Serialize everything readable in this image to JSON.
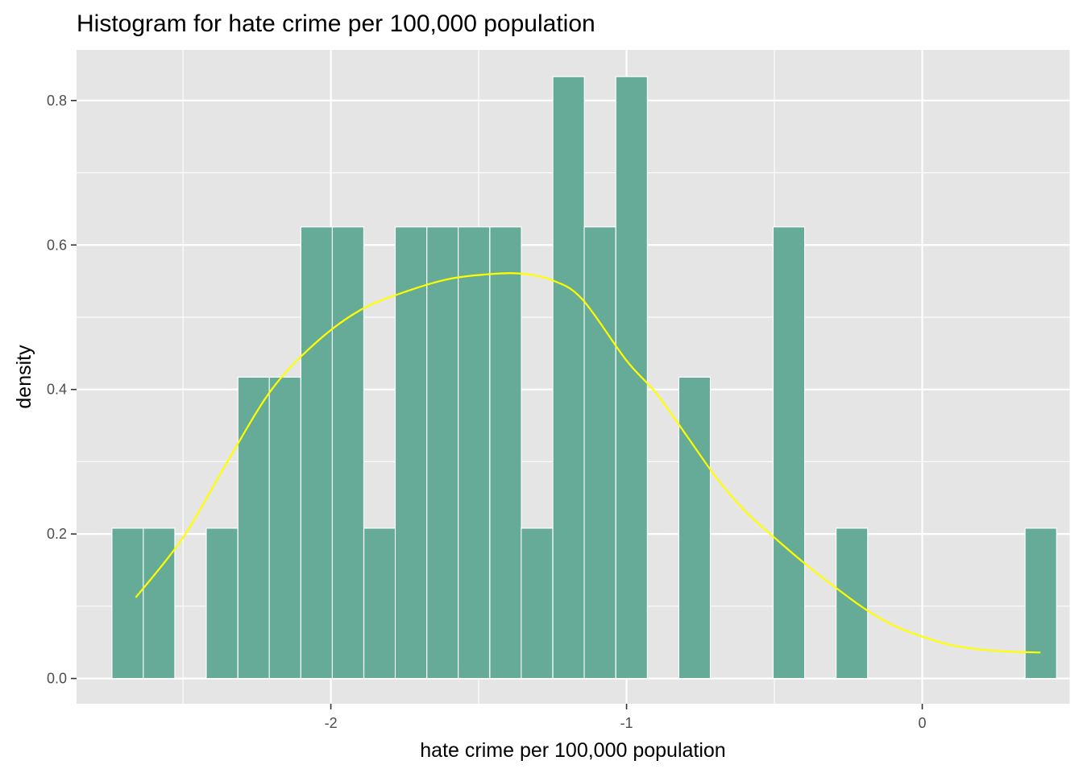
{
  "chart_data": {
    "type": "bar",
    "subtype": "histogram-with-density",
    "title": "Histogram for hate crime per 100,000 population",
    "xlabel": "hate crime per 100,000 population",
    "ylabel": "density",
    "xlim": [
      -2.86,
      0.5
    ],
    "ylim": [
      -0.035,
      0.87
    ],
    "x_ticks": [
      -2,
      -1,
      0
    ],
    "x_tick_labels": [
      "-2",
      "-1",
      "0"
    ],
    "y_ticks": [
      0.0,
      0.2,
      0.4,
      0.6,
      0.8
    ],
    "y_tick_labels": [
      "0.0",
      "0.2",
      "0.4",
      "0.6",
      "0.8"
    ],
    "grid": true,
    "bin_width": 0.1065,
    "bins": [
      {
        "center": -2.687,
        "density": 0.208
      },
      {
        "center": -2.581,
        "density": 0.208
      },
      {
        "center": -2.474,
        "density": 0.0
      },
      {
        "center": -2.368,
        "density": 0.208
      },
      {
        "center": -2.261,
        "density": 0.417
      },
      {
        "center": -2.155,
        "density": 0.417
      },
      {
        "center": -2.048,
        "density": 0.625
      },
      {
        "center": -1.942,
        "density": 0.625
      },
      {
        "center": -1.835,
        "density": 0.208
      },
      {
        "center": -1.729,
        "density": 0.625
      },
      {
        "center": -1.622,
        "density": 0.625
      },
      {
        "center": -1.516,
        "density": 0.625
      },
      {
        "center": -1.409,
        "density": 0.625
      },
      {
        "center": -1.303,
        "density": 0.208
      },
      {
        "center": -1.196,
        "density": 0.833
      },
      {
        "center": -1.09,
        "density": 0.625
      },
      {
        "center": -0.983,
        "density": 0.833
      },
      {
        "center": -0.877,
        "density": 0.0
      },
      {
        "center": -0.77,
        "density": 0.417
      },
      {
        "center": -0.664,
        "density": 0.0
      },
      {
        "center": -0.557,
        "density": 0.0
      },
      {
        "center": -0.451,
        "density": 0.625
      },
      {
        "center": -0.344,
        "density": 0.0
      },
      {
        "center": -0.238,
        "density": 0.208
      },
      {
        "center": -0.131,
        "density": 0.0
      },
      {
        "center": -0.025,
        "density": 0.0
      },
      {
        "center": 0.082,
        "density": 0.0
      },
      {
        "center": 0.188,
        "density": 0.0
      },
      {
        "center": 0.295,
        "density": 0.0
      },
      {
        "center": 0.401,
        "density": 0.208
      }
    ],
    "density_curve": {
      "x": [
        -2.66,
        -2.5,
        -2.35,
        -2.2,
        -2.05,
        -1.9,
        -1.75,
        -1.6,
        -1.45,
        -1.35,
        -1.25,
        -1.15,
        -1.0,
        -0.9,
        -0.8,
        -0.7,
        -0.6,
        -0.5,
        -0.4,
        -0.3,
        -0.2,
        -0.1,
        0.0,
        0.1,
        0.2,
        0.3,
        0.4
      ],
      "y": [
        0.112,
        0.195,
        0.3,
        0.4,
        0.465,
        0.51,
        0.535,
        0.553,
        0.56,
        0.56,
        0.551,
        0.525,
        0.44,
        0.395,
        0.338,
        0.28,
        0.232,
        0.195,
        0.16,
        0.128,
        0.098,
        0.074,
        0.058,
        0.046,
        0.04,
        0.037,
        0.036
      ]
    },
    "colors": {
      "panel_background": "#e5e5e5",
      "grid": "#ffffff",
      "bar_fill": "#66ab98",
      "bar_stroke": "#ffffff",
      "density_line": "#ffff00"
    }
  }
}
